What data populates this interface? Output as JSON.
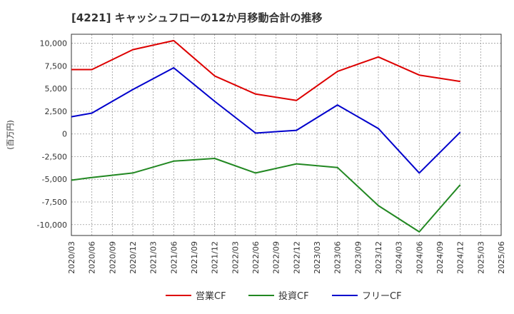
{
  "chart_data": {
    "type": "line",
    "title": "[4221]  キャッシュフローの12か月移動合計の推移",
    "ylabel": "(百万円)",
    "xlabel": "",
    "ylim": [
      -11200,
      11000
    ],
    "yticks": [
      10000,
      7500,
      5000,
      2500,
      0,
      -2500,
      -5000,
      -7500,
      -10000
    ],
    "ytick_labels": [
      "10,000",
      "7,500",
      "5,000",
      "2,500",
      "0",
      "-2,500",
      "-5,000",
      "-7,500",
      "-10,000"
    ],
    "x_tick_labels": [
      "2020/03",
      "2020/06",
      "2020/09",
      "2020/12",
      "2021/03",
      "2021/06",
      "2021/09",
      "2021/12",
      "2022/03",
      "2022/06",
      "2022/09",
      "2022/12",
      "2023/03",
      "2023/06",
      "2023/09",
      "2023/12",
      "2024/03",
      "2024/06",
      "2024/09",
      "2024/12",
      "2025/03",
      "2025/06"
    ],
    "grid": true,
    "legend_position": "bottom",
    "series": [
      {
        "name": "営業CF",
        "color": "#dd0000",
        "points": [
          [
            0,
            7100
          ],
          [
            1,
            7100
          ],
          [
            3,
            9300
          ],
          [
            5,
            10300
          ],
          [
            7,
            6400
          ],
          [
            9,
            4400
          ],
          [
            11,
            3700
          ],
          [
            13,
            6900
          ],
          [
            15,
            8500
          ],
          [
            17,
            6500
          ],
          [
            19,
            5800
          ]
        ]
      },
      {
        "name": "投資CF",
        "color": "#228822",
        "points": [
          [
            0,
            -5100
          ],
          [
            1,
            -4800
          ],
          [
            3,
            -4300
          ],
          [
            5,
            -3000
          ],
          [
            7,
            -2700
          ],
          [
            9,
            -4300
          ],
          [
            11,
            -3300
          ],
          [
            13,
            -3700
          ],
          [
            15,
            -7900
          ],
          [
            17,
            -10800
          ],
          [
            19,
            -5600
          ]
        ]
      },
      {
        "name": "フリーCF",
        "color": "#0000cc",
        "points": [
          [
            0,
            1900
          ],
          [
            1,
            2300
          ],
          [
            3,
            4900
          ],
          [
            5,
            7300
          ],
          [
            7,
            3600
          ],
          [
            9,
            100
          ],
          [
            11,
            400
          ],
          [
            13,
            3200
          ],
          [
            15,
            600
          ],
          [
            17,
            -4300
          ],
          [
            19,
            200
          ]
        ]
      }
    ]
  }
}
